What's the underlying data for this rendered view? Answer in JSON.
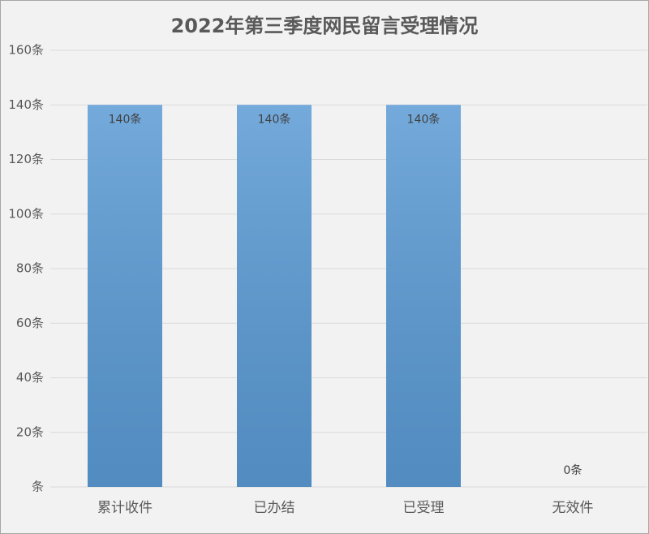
{
  "chart_data": {
    "type": "bar",
    "title": "2022年第三季度网民留言受理情况",
    "categories": [
      "累计收件",
      "已办结",
      "已受理",
      "无效件"
    ],
    "values": [
      140,
      140,
      140,
      0
    ],
    "value_labels": [
      "140条",
      "140条",
      "140条",
      "0条"
    ],
    "color": "#5b9bd5",
    "ylim": [
      0,
      160
    ],
    "yticks": [
      {
        "value": 0,
        "label": "条"
      },
      {
        "value": 20,
        "label": "20条"
      },
      {
        "value": 40,
        "label": "40条"
      },
      {
        "value": 60,
        "label": "60条"
      },
      {
        "value": 80,
        "label": "80条"
      },
      {
        "value": 100,
        "label": "100条"
      },
      {
        "value": 120,
        "label": "120条"
      },
      {
        "value": 140,
        "label": "140条"
      },
      {
        "value": 160,
        "label": "160条"
      }
    ],
    "grid": true
  }
}
